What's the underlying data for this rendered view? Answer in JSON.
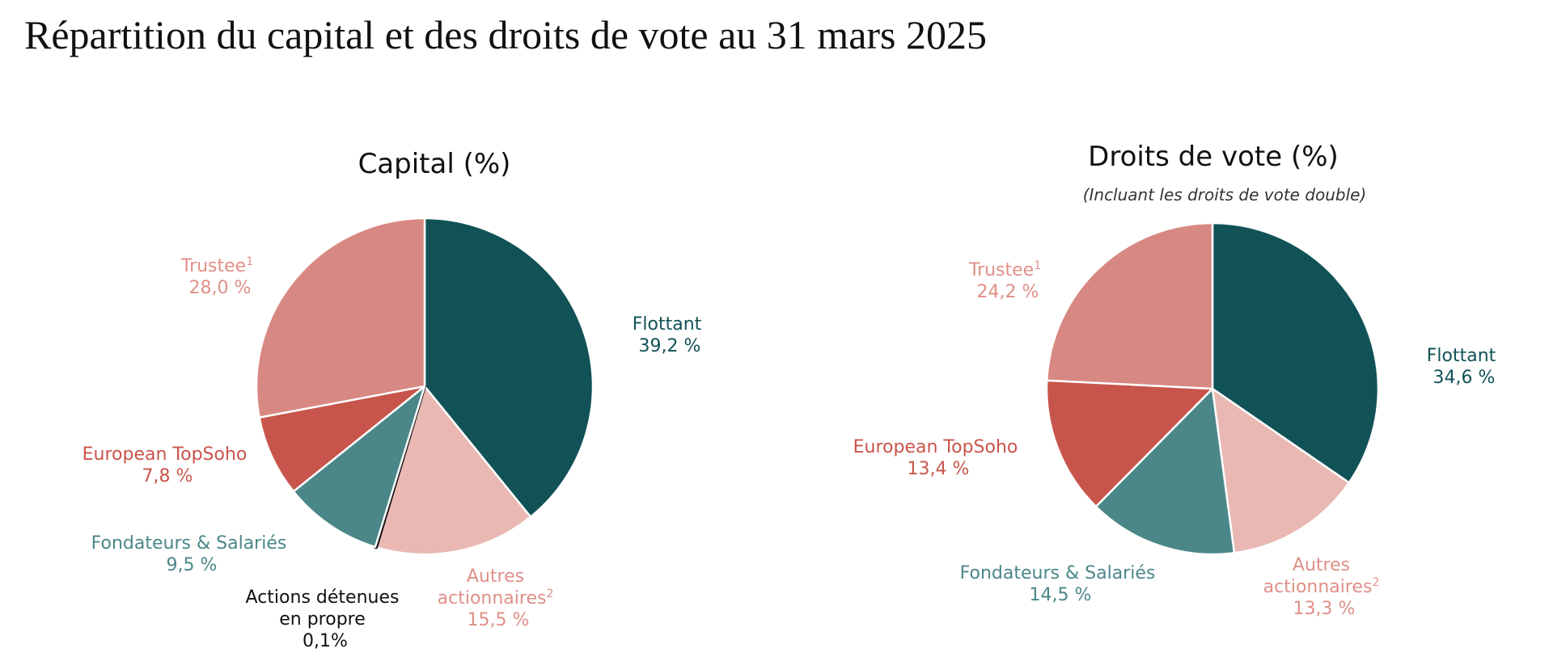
{
  "title": "Répartition du capital et des droits de vote au 31 mars 2025",
  "chart_data": [
    {
      "type": "pie",
      "title": "Capital (%)",
      "subtitle": "",
      "slices": [
        {
          "label": "Flottant",
          "sup": "",
          "value": 39.2,
          "display": "39,2 %",
          "color": "#115257",
          "text_color": "#115257"
        },
        {
          "label": "Autres actionnaires",
          "sup": "2",
          "value": 15.5,
          "display": "15,5 %",
          "color": "#e9b8b3",
          "text_color": "#e09088"
        },
        {
          "label": "Actions détenues en propre",
          "sup": "",
          "value": 0.1,
          "display": "0,1%",
          "color": "#111111",
          "text_color": "#111111"
        },
        {
          "label": "Fondateurs & Salariés",
          "sup": "",
          "value": 9.5,
          "display": "9,5 %",
          "color": "#4b8789",
          "text_color": "#4b8789"
        },
        {
          "label": "European TopSoho",
          "sup": "",
          "value": 7.8,
          "display": "7,8 %",
          "color": "#c8554b",
          "text_color": "#c8554b"
        },
        {
          "label": "Trustee",
          "sup": "1",
          "value": 28.0,
          "display": "28,0 %",
          "color": "#d88882",
          "text_color": "#e09088"
        }
      ]
    },
    {
      "type": "pie",
      "title": "Droits de vote (%)",
      "subtitle": "(Incluant les droits de vote double)",
      "slices": [
        {
          "label": "Flottant",
          "sup": "",
          "value": 34.6,
          "display": "34,6 %",
          "color": "#115257",
          "text_color": "#115257"
        },
        {
          "label": "Autres actionnaires",
          "sup": "2",
          "value": 13.3,
          "display": "13,3 %",
          "color": "#e9b8b3",
          "text_color": "#e09088"
        },
        {
          "label": "Fondateurs & Salariés",
          "sup": "",
          "value": 14.5,
          "display": "14,5 %",
          "color": "#4b8789",
          "text_color": "#4b8789"
        },
        {
          "label": "European TopSoho",
          "sup": "",
          "value": 13.4,
          "display": "13,4 %",
          "color": "#c8554b",
          "text_color": "#c8554b"
        },
        {
          "label": "Trustee",
          "sup": "1",
          "value": 24.2,
          "display": "24,2 %",
          "color": "#d88882",
          "text_color": "#e09088"
        }
      ]
    }
  ]
}
